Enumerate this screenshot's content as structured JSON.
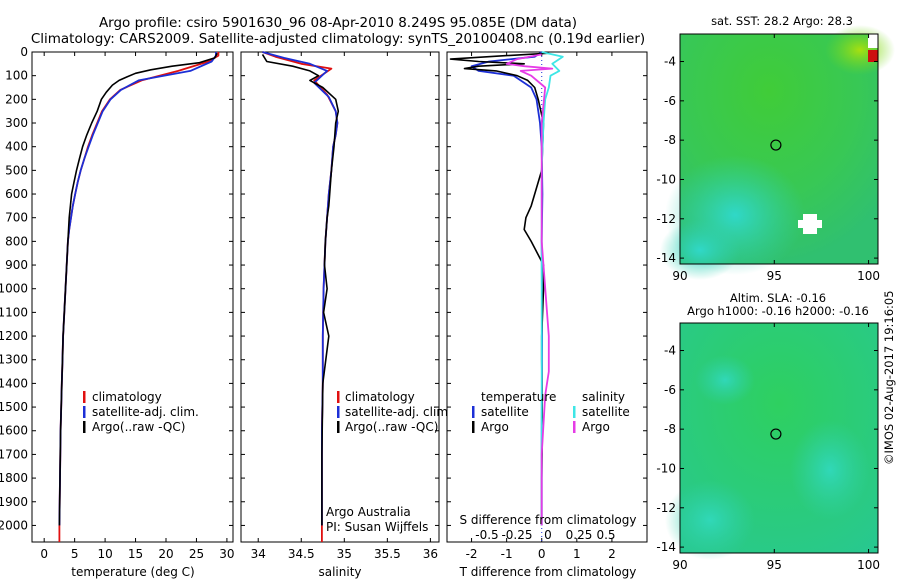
{
  "header": {
    "line1": "Argo profile: csiro 5901630_96 08-Apr-2010 8.249S 95.085E (DM data)",
    "line2": "Climatology: CARS2009. Satellite-adjusted climatology: synTS_20100408.nc (0.19d earlier)"
  },
  "side_stamp": "©IMOS 02-Aug-2017 19:16:05",
  "colors": {
    "climatology": "#e01010",
    "satellite": "#1c2fd6",
    "argo": "#000000",
    "sal_satellite": "#3ee6e6",
    "sal_argo": "#e63ce6"
  },
  "chart_data": [
    {
      "type": "line",
      "name": "temperature",
      "xlabel": "temperature (deg C)",
      "xlim": [
        -2,
        31
      ],
      "ylim": [
        2070,
        0
      ],
      "xticks": [
        0,
        5,
        10,
        15,
        20,
        25,
        30
      ],
      "yticks": [
        0,
        100,
        200,
        300,
        400,
        500,
        600,
        700,
        800,
        900,
        1000,
        1100,
        1200,
        1300,
        1400,
        1500,
        1600,
        1700,
        1800,
        1900,
        2000
      ],
      "legend": [
        "climatology",
        "satellite-adj. clim.",
        "Argo(..raw -QC)"
      ],
      "series": [
        {
          "name": "climatology",
          "color": "#e01010",
          "x": [
            28.6,
            28.6,
            27.0,
            22.0,
            16.0,
            12.5,
            10.8,
            9.5,
            8.7,
            7.9,
            7.2,
            6.6,
            6.0,
            5.5,
            5.1,
            4.7,
            4.4,
            4.1,
            3.9,
            3.7,
            3.5,
            3.3,
            3.1,
            3.0,
            2.9,
            2.8,
            2.7,
            2.65,
            2.6,
            2.55,
            2.5,
            2.5
          ],
          "depth": [
            0,
            15,
            40,
            80,
            120,
            160,
            200,
            250,
            300,
            350,
            400,
            450,
            500,
            550,
            600,
            650,
            700,
            750,
            800,
            900,
            1000,
            1100,
            1200,
            1300,
            1400,
            1500,
            1600,
            1700,
            1800,
            1900,
            2000,
            2070
          ]
        },
        {
          "name": "satellite-adj. clim.",
          "color": "#1c2fd6",
          "x": [
            28.2,
            28.2,
            27.5,
            24.0,
            15.5,
            12.6,
            10.9,
            9.6,
            8.8,
            8.0,
            7.3,
            6.6,
            6.0,
            5.5,
            5.1,
            4.7,
            4.4,
            4.1,
            3.9,
            3.7,
            3.5,
            3.3,
            3.1,
            3.0,
            2.9,
            2.8,
            2.7,
            2.65,
            2.6,
            2.55,
            2.5
          ],
          "depth": [
            0,
            15,
            40,
            80,
            120,
            160,
            200,
            250,
            300,
            350,
            400,
            450,
            500,
            550,
            600,
            650,
            700,
            750,
            800,
            900,
            1000,
            1100,
            1200,
            1300,
            1400,
            1500,
            1600,
            1700,
            1800,
            1900,
            2000
          ]
        },
        {
          "name": "Argo(..raw -QC)",
          "color": "#000000",
          "x": [
            28.4,
            28.0,
            25.5,
            21.0,
            17.5,
            15.0,
            13.6,
            12.3,
            11.2,
            10.2,
            9.4,
            8.7,
            7.8,
            7.0,
            6.3,
            5.8,
            5.3,
            4.9,
            4.5,
            4.1,
            3.9,
            3.7,
            3.5,
            3.3,
            3.1,
            3.0,
            2.9,
            2.8,
            2.7,
            2.65,
            2.6,
            2.55,
            2.5
          ],
          "depth": [
            5,
            25,
            45,
            60,
            75,
            90,
            105,
            120,
            140,
            170,
            200,
            250,
            300,
            350,
            400,
            450,
            500,
            550,
            600,
            700,
            800,
            900,
            1000,
            1100,
            1200,
            1300,
            1400,
            1500,
            1600,
            1700,
            1800,
            1900,
            2000
          ]
        }
      ]
    },
    {
      "type": "line",
      "name": "salinity",
      "xlabel": "salinity",
      "xlim": [
        33.8,
        36.1
      ],
      "ylim": [
        2070,
        0
      ],
      "xticks": [
        34,
        34.5,
        35,
        35.5,
        36
      ],
      "legend": [
        "climatology",
        "satellite-adj. clim.",
        "Argo(..raw -QC)"
      ],
      "annotation": [
        "Argo Australia",
        "PI: Susan Wijffels"
      ],
      "series": [
        {
          "name": "climatology",
          "color": "#e01010",
          "x": [
            34.05,
            34.2,
            34.5,
            34.85,
            34.65,
            34.8,
            34.9,
            34.92,
            34.9,
            34.87,
            34.85,
            34.82,
            34.8,
            34.78,
            34.77,
            34.76,
            34.75,
            34.75,
            34.74,
            34.74,
            34.74
          ],
          "depth": [
            0,
            20,
            50,
            70,
            120,
            180,
            250,
            300,
            350,
            400,
            500,
            600,
            700,
            800,
            900,
            1000,
            1200,
            1400,
            1600,
            1800,
            2070
          ]
        },
        {
          "name": "satellite-adj. clim.",
          "color": "#1c2fd6",
          "x": [
            34.05,
            34.3,
            34.6,
            34.8,
            34.65,
            34.82,
            34.9,
            34.92,
            34.9,
            34.87,
            34.85,
            34.82,
            34.8,
            34.78,
            34.77,
            34.76,
            34.75,
            34.75,
            34.74,
            34.74
          ],
          "depth": [
            0,
            25,
            50,
            80,
            130,
            190,
            250,
            300,
            350,
            400,
            500,
            600,
            700,
            800,
            900,
            1000,
            1200,
            1400,
            1600,
            2000
          ]
        },
        {
          "name": "Argo(..raw -QC)",
          "color": "#000000",
          "x": [
            34.05,
            34.1,
            34.4,
            34.6,
            34.7,
            34.6,
            34.75,
            34.9,
            34.93,
            34.9,
            34.88,
            34.85,
            34.83,
            34.82,
            34.8,
            34.78,
            34.77,
            34.8,
            34.76,
            34.82,
            34.75,
            34.74,
            34.74
          ],
          "depth": [
            10,
            40,
            60,
            80,
            100,
            120,
            150,
            200,
            250,
            300,
            400,
            500,
            600,
            650,
            700,
            800,
            900,
            1000,
            1100,
            1200,
            1400,
            1700,
            2000
          ]
        }
      ]
    },
    {
      "type": "line",
      "name": "difference",
      "xlabel": "T difference from climatology",
      "xlabel_top": "S difference from climatology",
      "xlim": [
        -2.7,
        3.0
      ],
      "ylim": [
        2070,
        0
      ],
      "xticks": [
        -2,
        -1,
        0,
        1,
        2
      ],
      "s_ticks": [
        "-0.5",
        "-0.25",
        "0",
        "0.25",
        "0.5"
      ],
      "legend_left_title": "temperature",
      "legend_right_title": "salinity",
      "legend": [
        "satellite",
        "Argo",
        "satellite",
        "Argo"
      ],
      "series": [
        {
          "name": "temperature satellite",
          "color": "#1c2fd6",
          "x": [
            0,
            -0.2,
            -1.5,
            -2.0,
            -1.8,
            -0.8,
            -0.3,
            -0.15,
            -0.05,
            0,
            0.02,
            0,
            0.01,
            0,
            0
          ],
          "depth": [
            0,
            20,
            40,
            60,
            80,
            100,
            150,
            200,
            300,
            400,
            600,
            800,
            1200,
            1600,
            2000
          ]
        },
        {
          "name": "temperature Argo",
          "color": "#000000",
          "x": [
            0.2,
            -1.0,
            -2.6,
            -1.8,
            -0.5,
            -1.8,
            -2.2,
            -1.3,
            -0.7,
            -0.4,
            -0.2,
            -0.1,
            0.05,
            0,
            -0.3,
            -0.45,
            -0.5,
            -0.3,
            0.05,
            0.05,
            0,
            0,
            0.02,
            0,
            0
          ],
          "depth": [
            5,
            15,
            30,
            40,
            50,
            60,
            70,
            80,
            100,
            120,
            150,
            200,
            300,
            500,
            650,
            700,
            750,
            800,
            900,
            1000,
            1200,
            1300,
            1600,
            1800,
            2000
          ]
        },
        {
          "name": "salinity satellite",
          "color": "#3ee6e6",
          "x": [
            0,
            0.6,
            0.3,
            0.5,
            0.25,
            0.2,
            0.1,
            0.05,
            0,
            0,
            0,
            0,
            0
          ],
          "depth": [
            0,
            20,
            50,
            80,
            100,
            150,
            200,
            300,
            500,
            800,
            1200,
            1600,
            2000
          ]
        },
        {
          "name": "salinity Argo",
          "color": "#e63ce6",
          "x": [
            0,
            -0.7,
            -1.0,
            -0.5,
            0.3,
            -0.6,
            -0.3,
            0.1,
            0,
            0,
            0.2,
            0.2,
            0.1,
            0,
            0
          ],
          "depth": [
            10,
            30,
            50,
            60,
            70,
            80,
            100,
            150,
            300,
            800,
            1200,
            1350,
            1450,
            1700,
            2000
          ]
        }
      ]
    },
    {
      "type": "heatmap",
      "name": "sat-sst",
      "title": "sat. SST: 28.2 Argo: 28.3",
      "xlim": [
        90,
        100.5
      ],
      "ylim": [
        -14.3,
        -2.6
      ],
      "xticks": [
        90,
        95,
        100
      ],
      "yticks": [
        -4,
        -6,
        -8,
        -10,
        -12,
        -14
      ],
      "marker": {
        "lon": 95.085,
        "lat": -8.249
      }
    },
    {
      "type": "heatmap",
      "name": "sla",
      "title_line1": "Altim. SLA: -0.16",
      "title_line2": "Argo h1000: -0.16 h2000: -0.16",
      "xlim": [
        90,
        100.5
      ],
      "ylim": [
        -14.3,
        -2.6
      ],
      "xticks": [
        90,
        95,
        100
      ],
      "yticks": [
        -4,
        -6,
        -8,
        -10,
        -12,
        -14
      ],
      "marker": {
        "lon": 95.085,
        "lat": -8.249
      }
    }
  ]
}
